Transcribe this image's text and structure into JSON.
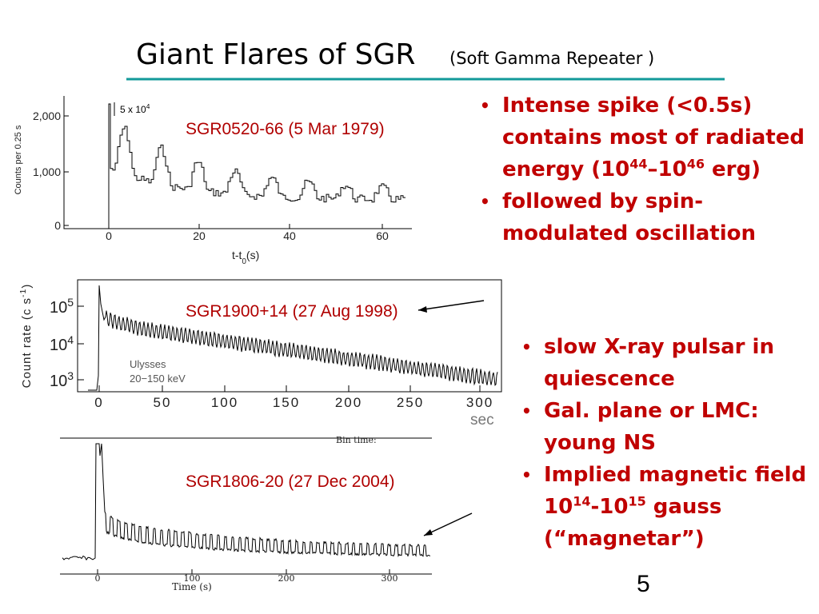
{
  "title": {
    "main": "Giant  Flares of SGR",
    "sub": "(Soft Gamma Repeater )"
  },
  "bullets_top": [
    [
      {
        "text": "Intense spike  (<0.5s) contains most of radiated energy (10"
      },
      {
        "sup": "44"
      },
      {
        "text": "–10"
      },
      {
        "sup": "46"
      },
      {
        "text": " erg)"
      }
    ],
    [
      {
        "text": "followed by spin-modulated oscillation"
      }
    ]
  ],
  "bullets_bottom": [
    [
      {
        "text": "slow X-ray pulsar in quiescence"
      }
    ],
    [
      {
        "text": "Gal. plane or LMC: young NS"
      }
    ],
    [
      {
        "text": "Implied magnetic field 10"
      },
      {
        "sup": "14"
      },
      {
        "text": "-10"
      },
      {
        "sup": "15"
      },
      {
        "text": " gauss (“magnetar”)"
      }
    ]
  ],
  "plots": [
    {
      "label": "SGR0520-66  (5 Mar 1979)",
      "y_label": "Counts per 0.25 s",
      "x_label": [
        {
          "text": "t-t"
        },
        {
          "sub": "0"
        },
        {
          "text": "(s)"
        }
      ],
      "annotation": [
        {
          "text": "5 x 10"
        },
        {
          "sup": "4"
        }
      ],
      "xticks": [
        "0",
        "20",
        "40",
        "60"
      ],
      "yticks": [
        "0",
        "1,000",
        "2,000"
      ]
    },
    {
      "label": "SGR1900+14  (27 Aug 1998)",
      "y_label": [
        {
          "text": "Count rate (c s"
        },
        {
          "sup": "-1"
        },
        {
          "text": ")"
        }
      ],
      "notes": [
        "Ulysses",
        "20−150 keV"
      ],
      "unit": "sec",
      "xticks": [
        "0",
        "50",
        "100",
        "150",
        "200",
        "250",
        "300"
      ],
      "yticks": [
        [
          {
            "text": "10"
          },
          {
            "sup": "3"
          }
        ],
        [
          {
            "text": "10"
          },
          {
            "sup": "4"
          }
        ],
        [
          {
            "text": "10"
          },
          {
            "sup": "5"
          }
        ]
      ]
    },
    {
      "label": "SGR1806-20  (27 Dec 2004)",
      "header": "Bin time:",
      "x_label": "Time (s)",
      "xticks": [
        "0",
        "100",
        "200",
        "300"
      ]
    }
  ],
  "page_number": "5"
}
